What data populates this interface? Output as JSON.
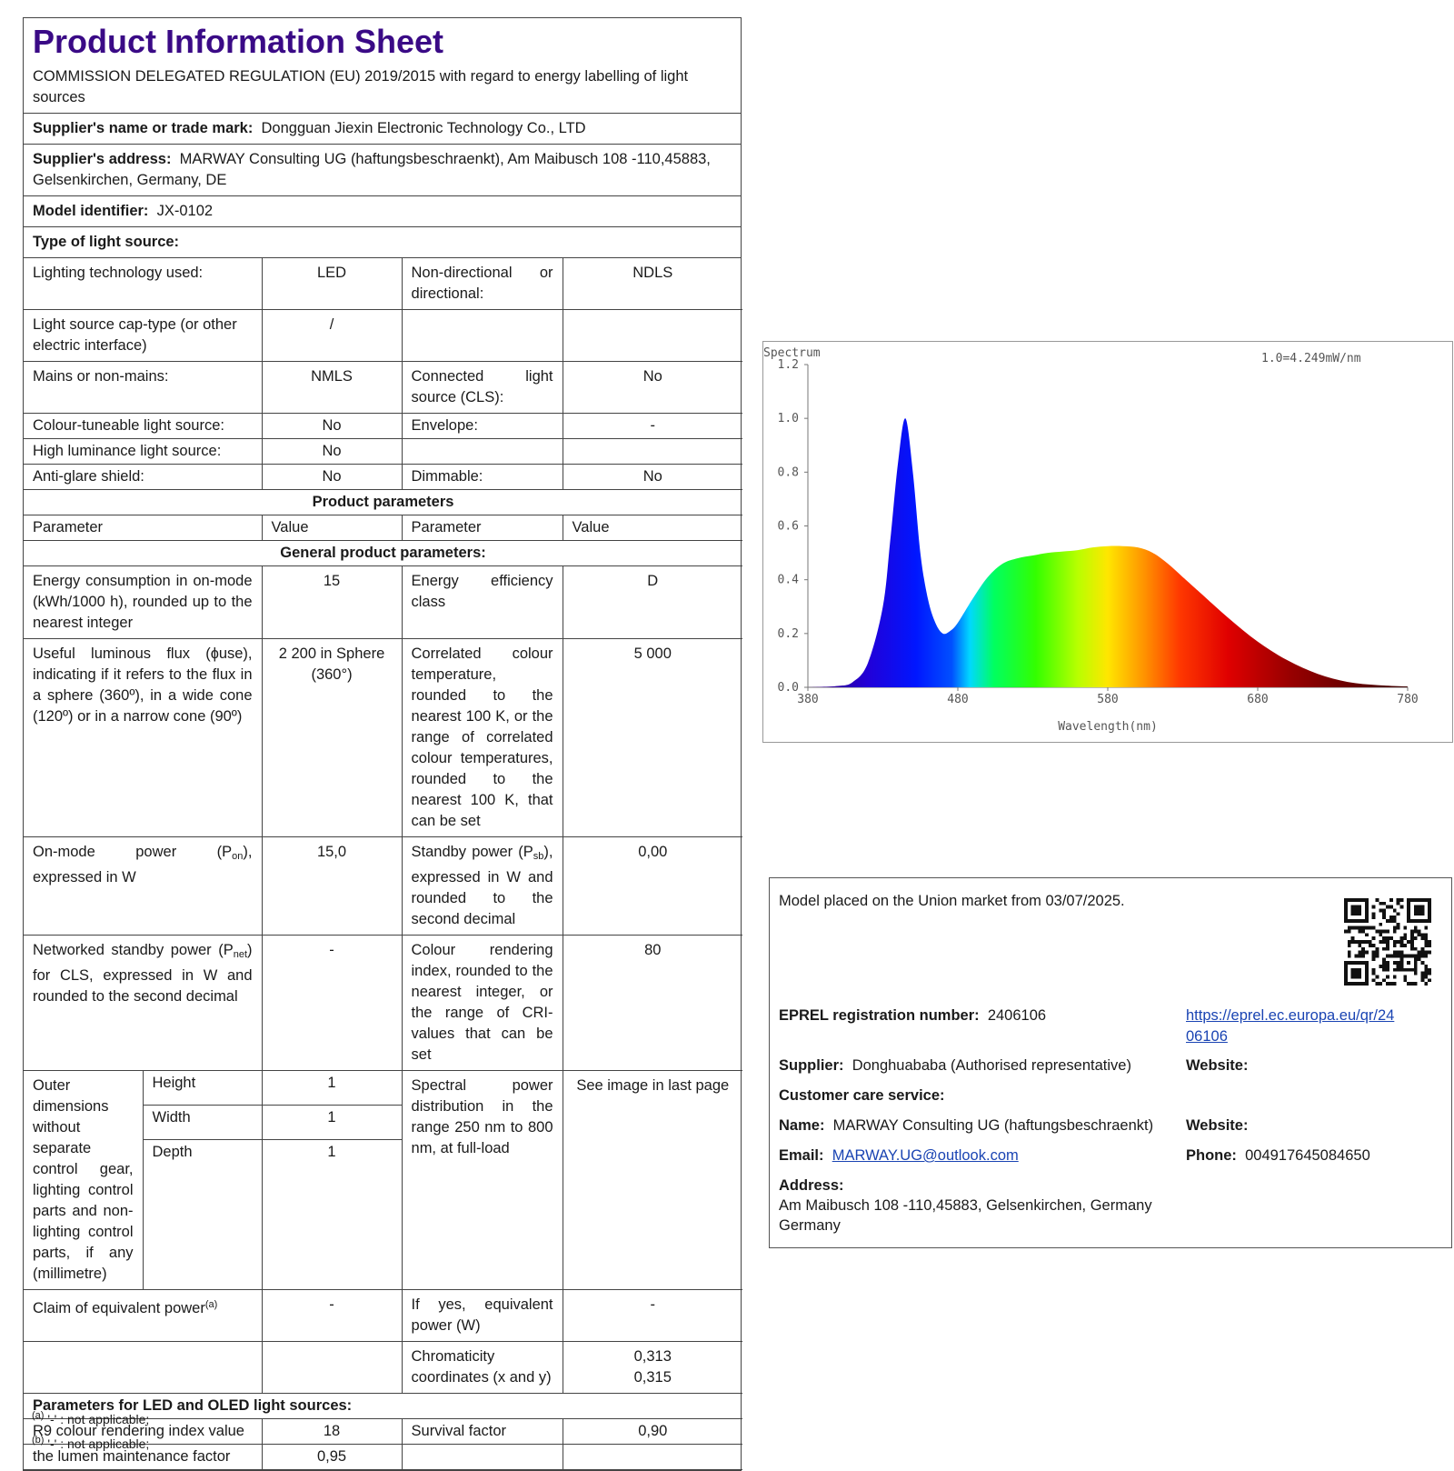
{
  "header": {
    "title": "Product Information Sheet",
    "regulation": "COMMISSION DELEGATED REGULATION (EU) 2019/2015 with regard to energy labelling of light sources"
  },
  "supplier": {
    "name_label": "Supplier's name or trade mark:",
    "name_value": "Dongguan Jiexin Electronic Technology Co., LTD",
    "address_label": "Supplier's address:",
    "address_value": "MARWAY Consulting UG (haftungsbeschraenkt), Am Maibusch 108 -110,45883, Gelsenkirchen, Germany, DE",
    "model_label": "Model identifier:",
    "model_value": "JX-0102",
    "type_label": "Type of light source:"
  },
  "light_source": [
    {
      "l1": "Lighting technology used:",
      "v1": "LED",
      "l2": "Non-directional or directional:",
      "v2": "NDLS"
    },
    {
      "l1": "Light source cap-type (or other electric interface)",
      "v1": "/",
      "l2": "",
      "v2": ""
    },
    {
      "l1": "Mains or non-mains:",
      "v1": "NMLS",
      "l2": "Connected light source (CLS):",
      "v2": "No"
    },
    {
      "l1": "Colour-tuneable light source:",
      "v1": "No",
      "l2": "Envelope:",
      "v2": "-"
    },
    {
      "l1": "High luminance light source:",
      "v1": "No",
      "l2": "",
      "v2": ""
    },
    {
      "l1": "Anti-glare shield:",
      "v1": "No",
      "l2": "Dimmable:",
      "v2": "No"
    }
  ],
  "sections": {
    "product_parameters": "Product parameters",
    "general": "General product parameters:",
    "led_oled": "Parameters for LED and OLED light sources:"
  },
  "col_headers": {
    "param": "Parameter",
    "value": "Value"
  },
  "params": {
    "energy_label": "Energy consumption in on-mode (kWh/1000 h), rounded up to the nearest integer",
    "energy_value": "15",
    "eff_label": "Energy efficiency class",
    "eff_value": "D",
    "flux_label": "Useful luminous flux (ɸuse), indicating if it refers to the flux in a sphere (360º), in a wide cone (120º) or in a narrow cone (90º)",
    "flux_value": "2 200 in Sphere (360°)",
    "cct_label": "Correlated colour temperature, rounded to the nearest 100 K, or the range of correlated colour temperatures, rounded to the nearest 100 K, that can be set",
    "cct_value": "5 000",
    "pon_pre": "On-mode power (P",
    "pon_sub": "on",
    "pon_post": "), expressed in W",
    "pon_value": "15,0",
    "psb_pre": "Standby power (P",
    "psb_sub": "sb",
    "psb_post": "), expressed in W and rounded to the second decimal",
    "psb_value": "0,00",
    "pnet_pre": "Networked standby power (P",
    "pnet_sub": "net",
    "pnet_post": ") for CLS, expressed in W and rounded to the second decimal",
    "pnet_value": "-",
    "cri_label": "Colour rendering index, rounded to the nearest integer, or the range of CRI-values that can be set",
    "cri_value": "80",
    "dims_label": "Outer dimensions without separate control gear, lighting control parts and non-lighting control parts, if any (millimetre)",
    "height_label": "Height",
    "height_value": "1",
    "width_label": "Width",
    "width_value": "1",
    "depth_label": "Depth",
    "depth_value": "1",
    "spd_label": "Spectral power distribution in the range 250 nm to 800 nm, at full-load",
    "spd_value": "See image in last page",
    "claim_label": "Claim of equivalent power",
    "claim_sup": "(a)",
    "claim_value": "-",
    "equiv_label": "If yes, equivalent power (W)",
    "equiv_value": "-",
    "chroma_label": "Chromaticity coordinates (x and y)",
    "chroma_x": "0,313",
    "chroma_y": "0,315",
    "r9_label": "R9 colour rendering index value",
    "r9_value": "18",
    "survival_label": "Survival factor",
    "survival_value": "0,90",
    "lumen_label": "the lumen maintenance factor",
    "lumen_value": "0,95"
  },
  "footnotes": {
    "a_mark": "(a)",
    "a_text": "'-' : not applicable;",
    "b_mark": "(b)",
    "b_text": "'-' : not applicable;"
  },
  "chart_data": {
    "type": "area",
    "title": "Spectrum",
    "annotation": "1.0=4.249mW/nm",
    "xlabel": "Wavelength(nm)",
    "ylabel": "",
    "xlim": [
      380,
      780
    ],
    "ylim": [
      0,
      1.2
    ],
    "x_ticks": [
      "380",
      "480",
      "580",
      "680",
      "780"
    ],
    "y_ticks": [
      "0.0",
      "0.2",
      "0.4",
      "0.6",
      "0.8",
      "1.0",
      "1.2"
    ],
    "x": [
      380,
      400,
      410,
      420,
      430,
      435,
      440,
      445,
      450,
      455,
      460,
      465,
      470,
      475,
      480,
      490,
      500,
      510,
      520,
      530,
      540,
      550,
      560,
      570,
      580,
      590,
      600,
      610,
      620,
      630,
      640,
      660,
      680,
      700,
      720,
      740,
      760,
      780
    ],
    "y": [
      0.0,
      0.005,
      0.02,
      0.09,
      0.3,
      0.55,
      0.83,
      1.0,
      0.8,
      0.5,
      0.33,
      0.24,
      0.2,
      0.21,
      0.24,
      0.33,
      0.41,
      0.46,
      0.48,
      0.49,
      0.5,
      0.505,
      0.51,
      0.52,
      0.525,
      0.525,
      0.52,
      0.5,
      0.46,
      0.41,
      0.36,
      0.26,
      0.17,
      0.1,
      0.05,
      0.02,
      0.008,
      0.003
    ]
  },
  "info": {
    "placed": "Model placed on the Union market from 03/07/2025.",
    "eprel_label": "EPREL registration number:",
    "eprel_value": "2406106",
    "eprel_link_1": "https://eprel.ec.europa.eu/qr/24",
    "eprel_link_2": "06106",
    "supplier_label": "Supplier:",
    "supplier_value": "Donghuababa (Authorised representative)",
    "website_label": "Website:",
    "care_label": "Customer care service:",
    "name_label": "Name:",
    "name_value": "MARWAY Consulting UG (haftungsbeschraenkt)",
    "website2_label": "Website:",
    "email_label": "Email:",
    "email_value": "MARWAY.UG@outlook.com",
    "phone_label": "Phone:",
    "phone_value": "004917645084650",
    "address_label": "Address:",
    "address_line1": "Am Maibusch 108 -110,45883, Gelsenkirchen, Germany",
    "address_line2": "Germany"
  }
}
